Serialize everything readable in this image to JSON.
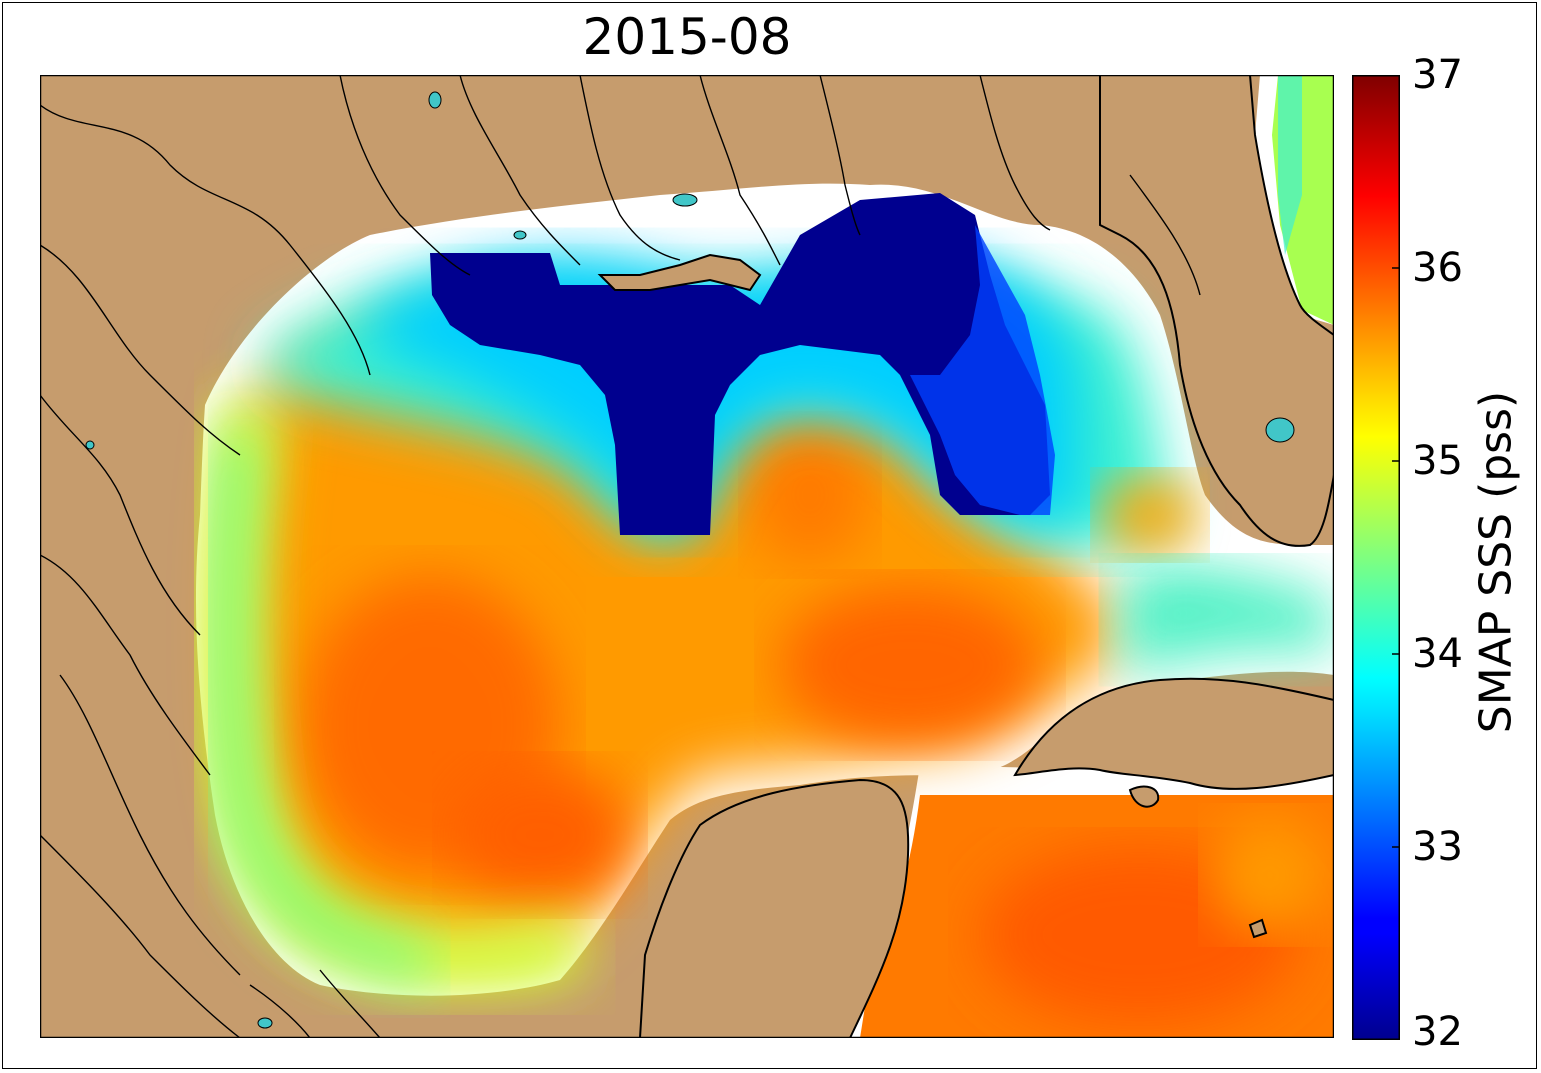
{
  "title": "2015-08",
  "colorbar": {
    "label": "SMAP SSS (pss)",
    "ticks": [
      "37",
      "36",
      "35",
      "34",
      "33",
      "32"
    ],
    "min": 32,
    "max": 37,
    "colormap": "jet"
  },
  "colors": {
    "land": "#C69C6D",
    "no_data": "#FFFFFF",
    "lakes": "#41C6C8"
  }
}
